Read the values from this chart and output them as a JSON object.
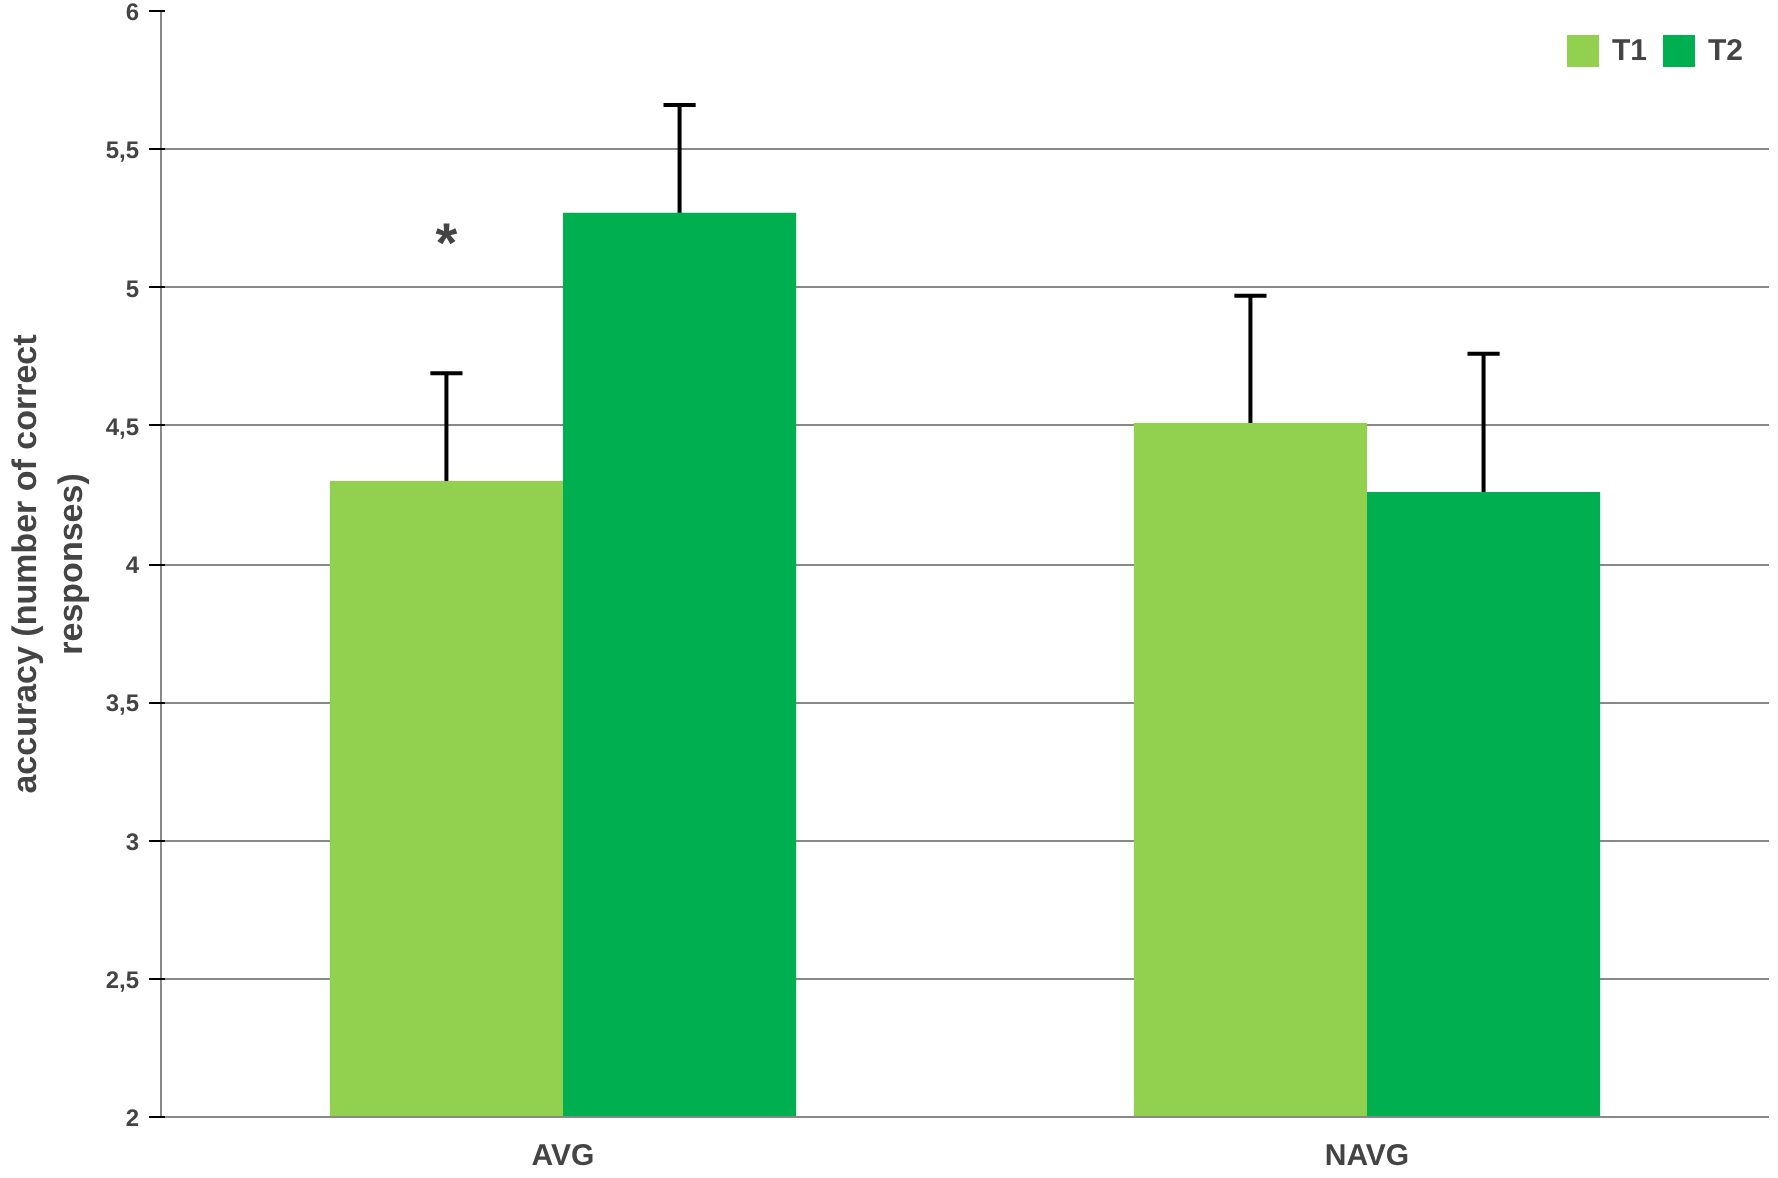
{
  "chart_data": {
    "type": "bar",
    "ylabel": "accuracy (number of correct\nresponses)",
    "categories": [
      "AVG",
      "NAVG"
    ],
    "series": [
      {
        "name": "T1",
        "color": "#92d050",
        "values": [
          4.3,
          4.51
        ],
        "errors": [
          [
            4.3,
            4.69
          ],
          [
            4.51,
            4.97
          ]
        ]
      },
      {
        "name": "T2",
        "color": "#00b050",
        "values": [
          5.27,
          4.26
        ],
        "errors": [
          [
            5.27,
            5.66
          ],
          [
            4.26,
            4.76
          ]
        ]
      }
    ],
    "ylim": [
      2,
      6
    ],
    "yticks": [
      2,
      {
        "value": 2.5,
        "label": "2,5"
      },
      3,
      {
        "value": 3.5,
        "label": "3,5"
      },
      4,
      {
        "value": 4.5,
        "label": "4,5"
      },
      5,
      {
        "value": 5.5,
        "label": "5,5"
      },
      6
    ],
    "grid": "y",
    "legend": "top right",
    "annotations": [
      {
        "text": "*",
        "x": "AVG",
        "y": 5.05
      }
    ]
  }
}
